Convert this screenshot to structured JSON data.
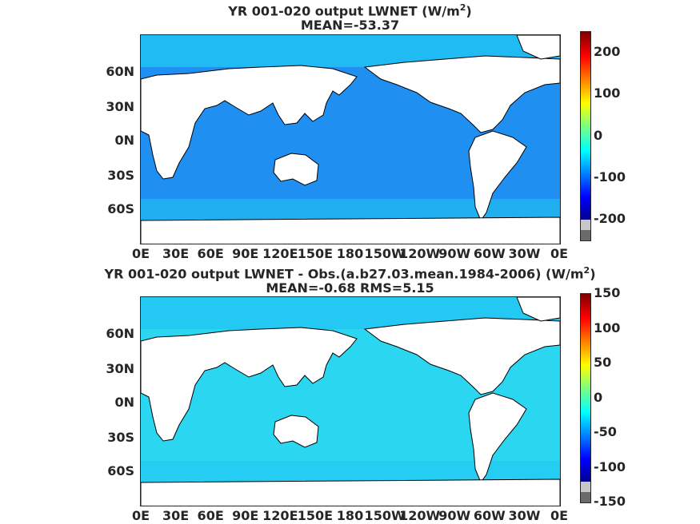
{
  "panels": [
    {
      "title_main": "YR 001-020 output  LWNET (W/m",
      "title_sup": "2",
      "title_end": ")",
      "subtitle": "MEAN=-53.37",
      "lat_labels": [
        "60N",
        "30N",
        "0N",
        "30S",
        "60S"
      ],
      "lon_labels": [
        "0E",
        "30E",
        "60E",
        "90E",
        "120E",
        "150E",
        "180",
        "150W",
        "120W",
        "90W",
        "60W",
        "30W",
        "0E"
      ],
      "colorbar_labels": [
        "200",
        "100",
        "0",
        "-100",
        "-200"
      ],
      "colorbar_range": [
        -250,
        250
      ],
      "ocean_color": "#1f8ff2"
    },
    {
      "title_main": "YR 001-020 output LWNET - Obs.(a.b27.03.mean.1984-2006) (W/m",
      "title_sup": "2",
      "title_end": ")",
      "subtitle": "MEAN=-0.68 RMS=5.15",
      "lat_labels": [
        "60N",
        "30N",
        "0N",
        "30S",
        "60S"
      ],
      "lon_labels": [
        "0E",
        "30E",
        "60E",
        "90E",
        "120E",
        "150E",
        "180",
        "150W",
        "120W",
        "90W",
        "60W",
        "30W",
        "0E"
      ],
      "colorbar_labels": [
        "150",
        "100",
        "50",
        "0",
        "-50",
        "-100",
        "-150"
      ],
      "colorbar_range": [
        -150,
        150
      ],
      "ocean_color": "#2ad6f0"
    }
  ],
  "colors": {
    "land": "#ffffff",
    "coast": "#000000",
    "jet_red": "#e00000",
    "jet_blue": "#0000b4",
    "cbar_gray_light": "#c8c8c8",
    "cbar_gray_dark": "#6a6a6a"
  }
}
